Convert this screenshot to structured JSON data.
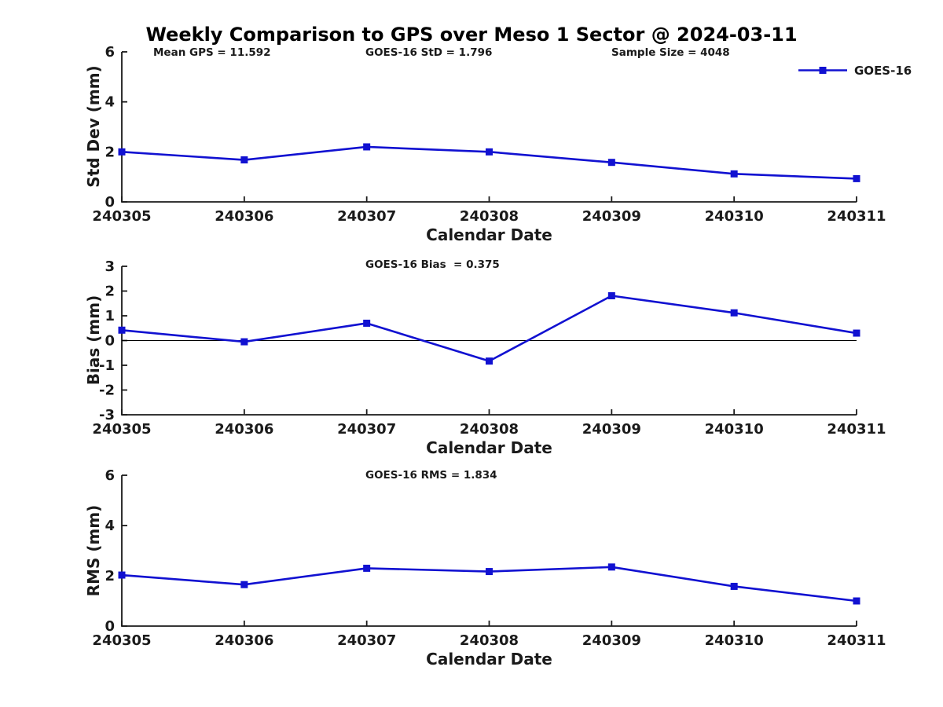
{
  "figure_title": "Weekly Comparison to GPS over Meso 1 Sector @ 2024-03-11",
  "legend": {
    "label": "GOES-16"
  },
  "chart_data": [
    {
      "type": "line",
      "title": "",
      "annotations": [
        {
          "text": "Mean GPS = 11.592"
        },
        {
          "text": "GOES-16 StD = 1.796"
        },
        {
          "text": "Sample Size = 4048"
        }
      ],
      "categories": [
        "240305",
        "240306",
        "240307",
        "240308",
        "240309",
        "240310",
        "240311"
      ],
      "series": [
        {
          "name": "GOES-16",
          "values": [
            2.0,
            1.68,
            2.2,
            2.0,
            1.58,
            1.12,
            0.93
          ]
        }
      ],
      "xlabel": "Calendar Date",
      "ylabel": "Std Dev (mm)",
      "ylim": [
        0,
        6
      ],
      "yticks": [
        0,
        2,
        4,
        6
      ],
      "grid": false,
      "legend_position": "upper-right",
      "line_color": "#1111d1",
      "marker": "square",
      "zero_line": false
    },
    {
      "type": "line",
      "title": "GOES-16 Bias  = 0.375",
      "annotations": [],
      "categories": [
        "240305",
        "240306",
        "240307",
        "240308",
        "240309",
        "240310",
        "240311"
      ],
      "series": [
        {
          "name": "GOES-16",
          "values": [
            0.42,
            -0.05,
            0.7,
            -0.83,
            1.81,
            1.12,
            0.3
          ]
        }
      ],
      "xlabel": "Calendar Date",
      "ylabel": "Bias (mm)",
      "ylim": [
        -3,
        3
      ],
      "yticks": [
        -3,
        -2,
        -1,
        0,
        1,
        2,
        3
      ],
      "grid": false,
      "legend_position": "none",
      "line_color": "#1111d1",
      "marker": "square",
      "zero_line": true
    },
    {
      "type": "line",
      "title": "GOES-16 RMS = 1.834",
      "annotations": [],
      "categories": [
        "240305",
        "240306",
        "240307",
        "240308",
        "240309",
        "240310",
        "240311"
      ],
      "series": [
        {
          "name": "GOES-16",
          "values": [
            2.03,
            1.65,
            2.3,
            2.17,
            2.35,
            1.58,
            1.0
          ]
        }
      ],
      "xlabel": "Calendar Date",
      "ylabel": "RMS (mm)",
      "ylim": [
        0,
        6
      ],
      "yticks": [
        0,
        2,
        4,
        6
      ],
      "grid": false,
      "legend_position": "none",
      "line_color": "#1111d1",
      "marker": "square",
      "zero_line": false
    }
  ]
}
